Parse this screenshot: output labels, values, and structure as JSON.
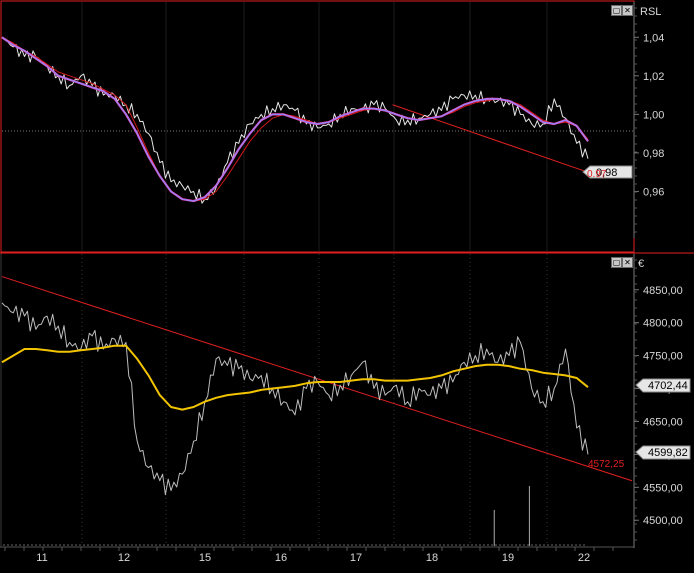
{
  "panels": {
    "upper": {
      "indicator_label": "RSL",
      "last_value_badge": "0,98",
      "trend_label": "0.97",
      "y_ticks": [
        "1,04",
        "1,02",
        "1,00",
        "0,98",
        "0,96"
      ],
      "y_tick_values": [
        1.04,
        1.02,
        1.0,
        0.98,
        0.96
      ],
      "icons": [
        "maximize-icon",
        "close-icon"
      ]
    },
    "lower": {
      "currency_label": "€",
      "last_value_badge": "4599,82",
      "ma_value_badge": "4702,44",
      "trend_label": "4572,25",
      "y_ticks": [
        "4850,00",
        "4800,00",
        "4750,00",
        "4700,00",
        "4650,00",
        "4600,00",
        "4550,00",
        "4500,00"
      ],
      "y_tick_values": [
        4850,
        4800,
        4750,
        4700,
        4650,
        4600,
        4550,
        4500
      ],
      "icons": [
        "maximize-icon",
        "close-icon"
      ]
    }
  },
  "x_axis": {
    "labels": [
      "11",
      "12",
      "15",
      "16",
      "17",
      "18",
      "19",
      "22"
    ]
  },
  "colors": {
    "background": "#000000",
    "frame_red": "#e02020",
    "price_line": "#bdbdbd",
    "ma_yellow": "#f2c400",
    "ma_blue": "#8a8cff",
    "ma_pink": "#ff3bb0",
    "ma_red": "#d01818",
    "trend_red": "#e02020",
    "axis_text": "#d8d8d8",
    "grid": "#3a3a3a"
  },
  "chart_data": [
    {
      "type": "line",
      "title": "",
      "indicator": "RSL",
      "ylim": [
        0.94,
        1.05
      ],
      "x_labels": [
        "11",
        "12",
        "15",
        "16",
        "17",
        "18",
        "19",
        "22"
      ],
      "series": [
        {
          "values": [
            1.04,
            1.035,
            1.03,
            1.03,
            1.025,
            1.02,
            1.015,
            1.02,
            1.015,
            1.01,
            1.01,
            1.005,
            1.0,
            0.99,
            0.975,
            0.965,
            0.963,
            0.96,
            0.956,
            0.962,
            0.975,
            0.985,
            0.995,
            1.0,
            1.003,
            1.005,
            1.002,
            0.995,
            0.993,
            0.995,
            1.0,
            1.003,
            1.002,
            1.005,
            1.003,
            0.997,
            0.997,
            0.998,
            1.0,
            1.002,
            1.008,
            1.01,
            1.01,
            1.008,
            1.007,
            1.005,
            1.0,
            0.995,
            0.995,
            1.008,
            0.998,
            0.985,
            0.977
          ]
        },
        {
          "values": [
            1.04,
            1.036,
            1.033,
            1.029,
            1.025,
            1.02,
            1.018,
            1.016,
            1.014,
            1.012,
            1.008,
            1.0,
            0.99,
            0.978,
            0.968,
            0.96,
            0.956,
            0.955,
            0.957,
            0.963,
            0.972,
            0.982,
            0.99,
            0.997,
            1.0,
            1.0,
            0.998,
            0.996,
            0.995,
            0.996,
            0.999,
            1.001,
            1.003,
            1.003,
            1.002,
            1.0,
            0.998,
            0.997,
            0.998,
            0.999,
            1.002,
            1.005,
            1.007,
            1.008,
            1.008,
            1.007,
            1.004,
            1.0,
            0.996,
            0.995,
            0.997,
            0.994,
            0.986
          ]
        },
        {
          "values": [
            1.04,
            1.037,
            1.033,
            1.03,
            1.026,
            1.022,
            1.02,
            1.018,
            1.016,
            1.013,
            1.01,
            1.005,
            0.993,
            0.98,
            0.968,
            0.96,
            0.956,
            0.955,
            0.956,
            0.96,
            0.968,
            0.977,
            0.986,
            0.993,
            0.998,
            1.0,
            0.999,
            0.997,
            0.995,
            0.996,
            0.998,
            1.0,
            1.002,
            1.003,
            1.002,
            1.0,
            0.998,
            0.997,
            0.998,
            0.999,
            1.001,
            1.004,
            1.006,
            1.007,
            1.008,
            1.007,
            1.005,
            1.001,
            0.997,
            0.995,
            0.996,
            0.994,
            0.987
          ]
        }
      ],
      "trendline": {
        "from": [
          0.62,
          1.005
        ],
        "to": [
          0.93,
          0.97
        ],
        "label": "0.97"
      }
    },
    {
      "type": "line",
      "title": "",
      "ylim": [
        4470,
        4880
      ],
      "x_labels": [
        "11",
        "12",
        "15",
        "16",
        "17",
        "18",
        "19",
        "22"
      ],
      "series": [
        {
          "values": [
            4830,
            4815,
            4810,
            4790,
            4810,
            4795,
            4770,
            4760,
            4780,
            4760,
            4775,
            4770,
            4620,
            4580,
            4560,
            4545,
            4570,
            4620,
            4680,
            4745,
            4735,
            4730,
            4715,
            4720,
            4700,
            4680,
            4660,
            4700,
            4710,
            4690,
            4705,
            4720,
            4740,
            4700,
            4690,
            4705,
            4680,
            4700,
            4690,
            4700,
            4710,
            4740,
            4750,
            4760,
            4740,
            4750,
            4770,
            4700,
            4680,
            4700,
            4760,
            4640,
            4600
          ]
        },
        {
          "values": [
            4740,
            4750,
            4760,
            4760,
            4758,
            4756,
            4756,
            4758,
            4760,
            4762,
            4765,
            4765,
            4745,
            4720,
            4690,
            4672,
            4668,
            4672,
            4680,
            4686,
            4690,
            4692,
            4694,
            4698,
            4700,
            4702,
            4704,
            4708,
            4710,
            4710,
            4710,
            4712,
            4714,
            4714,
            4712,
            4712,
            4712,
            4714,
            4716,
            4720,
            4726,
            4730,
            4734,
            4736,
            4736,
            4734,
            4730,
            4728,
            4724,
            4722,
            4720,
            4716,
            4702
          ]
        }
      ],
      "trendline": {
        "from": [
          0.0,
          4870
        ],
        "to": [
          1.0,
          4560
        ],
        "label": "4572,25"
      },
      "volume_bars": [
        {
          "x": 0.84,
          "h": 0.6
        },
        {
          "x": 0.9,
          "h": 1.0
        }
      ]
    }
  ]
}
